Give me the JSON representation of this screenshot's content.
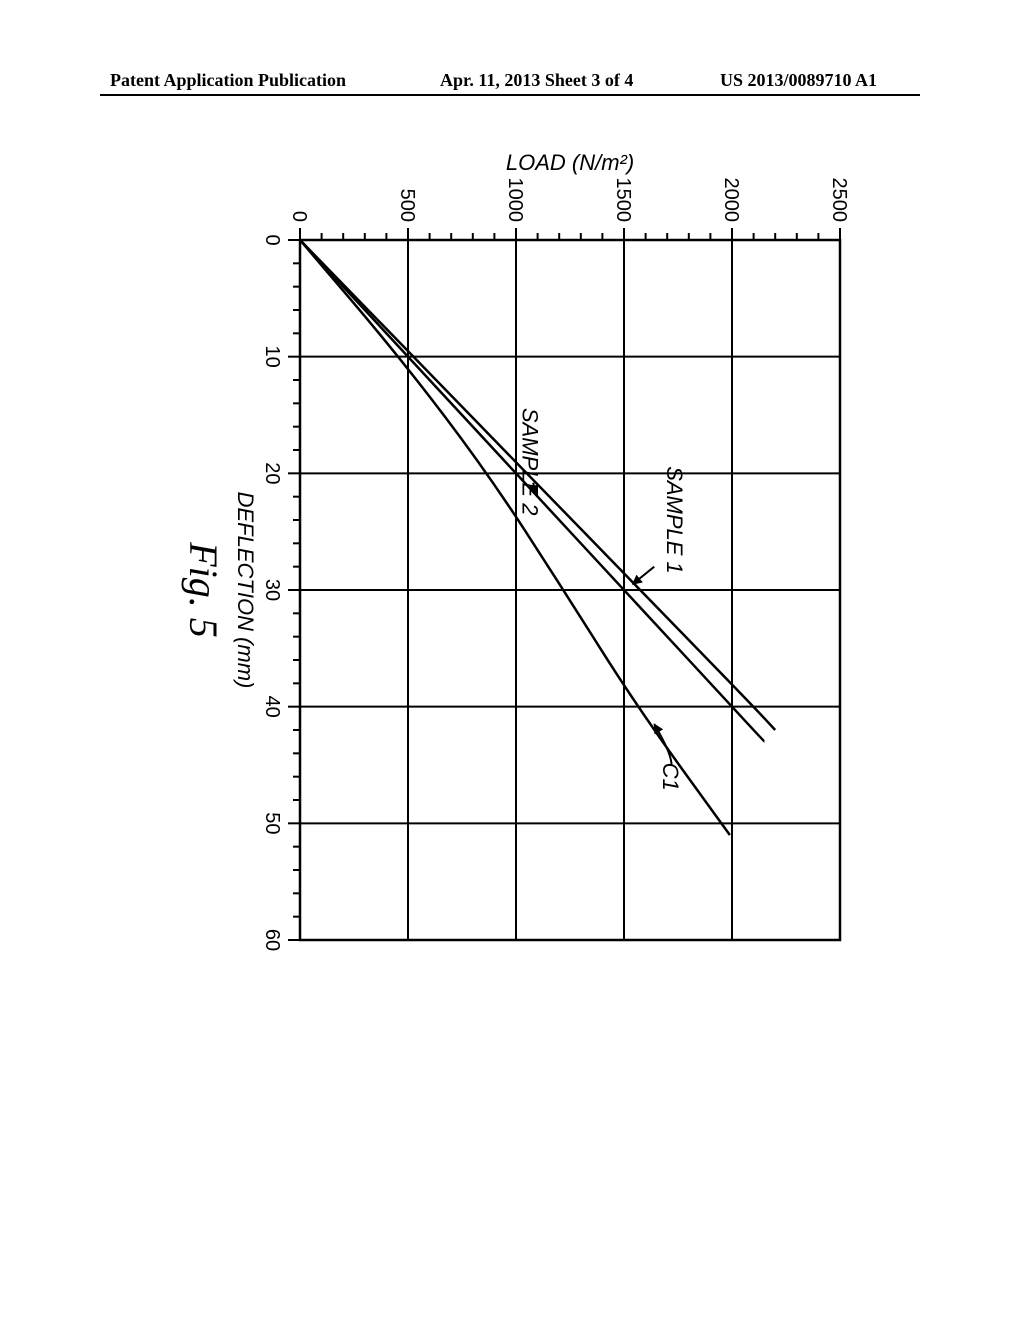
{
  "header": {
    "left": "Patent Application Publication",
    "center": "Apr. 11, 2013  Sheet 3 of 4",
    "right": "US 2013/0089710 A1"
  },
  "chart": {
    "type": "line",
    "figure_label": "Fig. 5",
    "background_color": "#ffffff",
    "grid_color": "#000000",
    "axis_line_width": 2.5,
    "grid_line_width": 2,
    "curve_line_width": 2.5,
    "x": {
      "label": "DEFLECTION (mm)",
      "min": 0,
      "max": 60,
      "major_step": 10,
      "minor_step": 2,
      "ticks": [
        0,
        10,
        20,
        30,
        40,
        50,
        60
      ]
    },
    "y": {
      "label": "LOAD (N/m²)",
      "min": 0,
      "max": 2500,
      "major_step": 500,
      "minor_step": 100,
      "ticks": [
        0,
        500,
        1000,
        1500,
        2000,
        2500
      ]
    },
    "series": [
      {
        "name": "SAMPLE 1",
        "color": "#000000",
        "points": [
          [
            0,
            0
          ],
          [
            10,
            525
          ],
          [
            20,
            1050
          ],
          [
            30,
            1575
          ],
          [
            40,
            2100
          ],
          [
            42,
            2200
          ]
        ],
        "label_pos": {
          "x": 24,
          "y": 1700
        },
        "callout_from": {
          "x": 28,
          "y": 1640
        },
        "callout_to": {
          "x": 29.5,
          "y": 1540
        }
      },
      {
        "name": "SAMPLE 2",
        "color": "#000000",
        "points": [
          [
            0,
            0
          ],
          [
            10,
            500
          ],
          [
            20,
            1000
          ],
          [
            30,
            1500
          ],
          [
            40,
            2000
          ],
          [
            43,
            2150
          ]
        ],
        "label_pos": {
          "x": 19,
          "y": 1030
        },
        "callout_from": {
          "x": 20.8,
          "y": 1080
        },
        "callout_to": {
          "x": 21.8,
          "y": 1090
        }
      },
      {
        "name": "C1",
        "color": "#000000",
        "points": [
          [
            0,
            0
          ],
          [
            10,
            460
          ],
          [
            20,
            870
          ],
          [
            30,
            1220
          ],
          [
            40,
            1560
          ],
          [
            51,
            1990
          ]
        ],
        "label_pos": {
          "x": 46,
          "y": 1680
        },
        "callout_from": {
          "x": 45,
          "y": 1720
        },
        "callout_to": {
          "x": 44,
          "y": 1720
        },
        "callout_arrow_to": {
          "x": 41.5,
          "y": 1640
        }
      }
    ]
  }
}
